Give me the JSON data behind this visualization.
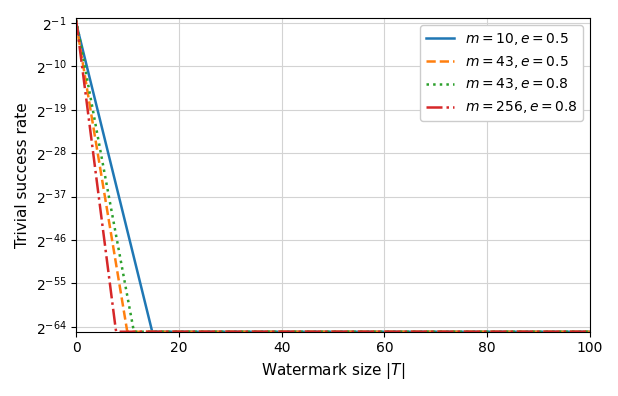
{
  "lines": [
    {
      "m": 10,
      "e": 0.5,
      "color": "#1f77b4",
      "linestyle": "-",
      "label": "$m = 10, e = 0.5$"
    },
    {
      "m": 43,
      "e": 0.5,
      "color": "#ff7f0e",
      "linestyle": "--",
      "label": "$m = 43, e = 0.5$"
    },
    {
      "m": 43,
      "e": 0.8,
      "color": "#2ca02c",
      "linestyle": ":",
      "label": "$m = 43, e = 0.8$"
    },
    {
      "m": 256,
      "e": 0.8,
      "color": "#d62728",
      "linestyle": "-.",
      "label": "$m = 256, e = 0.8$"
    }
  ],
  "xlabel": "Watermark size $|T|$",
  "ylabel": "Trivial success rate",
  "xlim": [
    0,
    100
  ],
  "yticks_exp": [
    -1,
    -10,
    -19,
    -28,
    -37,
    -46,
    -55,
    -64
  ],
  "ymin_exp": -65,
  "ymax_exp": 0
}
